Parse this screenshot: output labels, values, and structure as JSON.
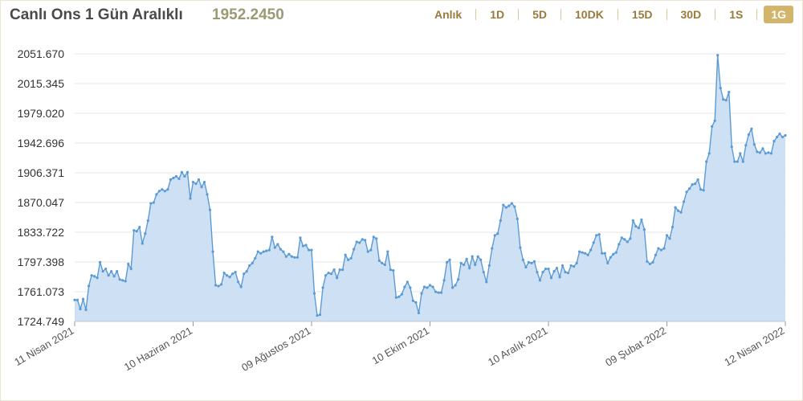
{
  "header": {
    "title": "Canlı Ons 1 Gün Aralıklı",
    "price": "1952.2450"
  },
  "tabs": [
    {
      "label": "Anlık",
      "active": false
    },
    {
      "label": "1D",
      "active": false
    },
    {
      "label": "5D",
      "active": false
    },
    {
      "label": "10DK",
      "active": false
    },
    {
      "label": "15D",
      "active": false
    },
    {
      "label": "30D",
      "active": false
    },
    {
      "label": "1S",
      "active": false
    },
    {
      "label": "1G",
      "active": true
    }
  ],
  "colors": {
    "line": "#5b9bd5",
    "fill": "#c9ddf2",
    "active_tab": "#d2b46a"
  },
  "chart_data": {
    "type": "area",
    "yticks": [
      "2051.670",
      "2015.345",
      "1979.020",
      "1942.696",
      "1906.371",
      "1870.047",
      "1833.722",
      "1797.398",
      "1761.073",
      "1724.749"
    ],
    "ylim": [
      1724.749,
      2051.67
    ],
    "xticks": [
      "11 Nisan 2021",
      "10 Haziran 2021",
      "09 Ağustos 2021",
      "10 Ekim 2021",
      "10 Aralık 2021",
      "09 Şubat 2022",
      "12 Nisan 2022"
    ],
    "grid": true,
    "series": [
      {
        "values": [
          1751,
          1751,
          1740,
          1752,
          1739,
          1768,
          1781,
          1780,
          1778,
          1797,
          1786,
          1789,
          1781,
          1786,
          1780,
          1786,
          1776,
          1775,
          1774,
          1795,
          1789,
          1836,
          1835,
          1840,
          1820,
          1832,
          1848,
          1869,
          1870,
          1880,
          1884,
          1886,
          1884,
          1886,
          1898,
          1900,
          1902,
          1899,
          1907,
          1902,
          1907,
          1875,
          1895,
          1893,
          1898,
          1889,
          1895,
          1880,
          1861,
          1810,
          1769,
          1768,
          1770,
          1784,
          1781,
          1779,
          1783,
          1785,
          1773,
          1767,
          1783,
          1786,
          1793,
          1796,
          1802,
          1810,
          1808,
          1810,
          1811,
          1812,
          1828,
          1815,
          1819,
          1813,
          1810,
          1804,
          1807,
          1804,
          1803,
          1803,
          1827,
          1817,
          1818,
          1812,
          1812,
          1759,
          1732,
          1733,
          1766,
          1781,
          1784,
          1783,
          1788,
          1778,
          1788,
          1788,
          1806,
          1800,
          1802,
          1813,
          1822,
          1821,
          1825,
          1824,
          1810,
          1812,
          1828,
          1826,
          1799,
          1796,
          1794,
          1810,
          1788,
          1787,
          1754,
          1755,
          1758,
          1767,
          1773,
          1766,
          1750,
          1748,
          1735,
          1759,
          1767,
          1766,
          1769,
          1767,
          1761,
          1760,
          1760,
          1775,
          1797,
          1800,
          1766,
          1769,
          1776,
          1796,
          1794,
          1801,
          1790,
          1804,
          1794,
          1804,
          1800,
          1785,
          1773,
          1793,
          1814,
          1830,
          1832,
          1848,
          1867,
          1864,
          1866,
          1869,
          1865,
          1850,
          1815,
          1800,
          1791,
          1797,
          1796,
          1798,
          1785,
          1775,
          1785,
          1789,
          1789,
          1778,
          1786,
          1790,
          1779,
          1793,
          1785,
          1784,
          1793,
          1792,
          1796,
          1810,
          1809,
          1808,
          1806,
          1812,
          1821,
          1830,
          1831,
          1808,
          1808,
          1796,
          1803,
          1807,
          1809,
          1819,
          1827,
          1825,
          1822,
          1826,
          1848,
          1841,
          1839,
          1849,
          1837,
          1798,
          1795,
          1797,
          1806,
          1814,
          1812,
          1814,
          1830,
          1826,
          1840,
          1864,
          1860,
          1858,
          1871,
          1883,
          1887,
          1892,
          1893,
          1898,
          1886,
          1885,
          1920,
          1930,
          1963,
          1970,
          2050,
          2010,
          1996,
          1995,
          2005,
          1938,
          1920,
          1920,
          1930,
          1920,
          1940,
          1953,
          1960,
          1941,
          1932,
          1931,
          1936,
          1930,
          1931,
          1930,
          1945,
          1950,
          1954,
          1950,
          1952
        ]
      }
    ]
  }
}
